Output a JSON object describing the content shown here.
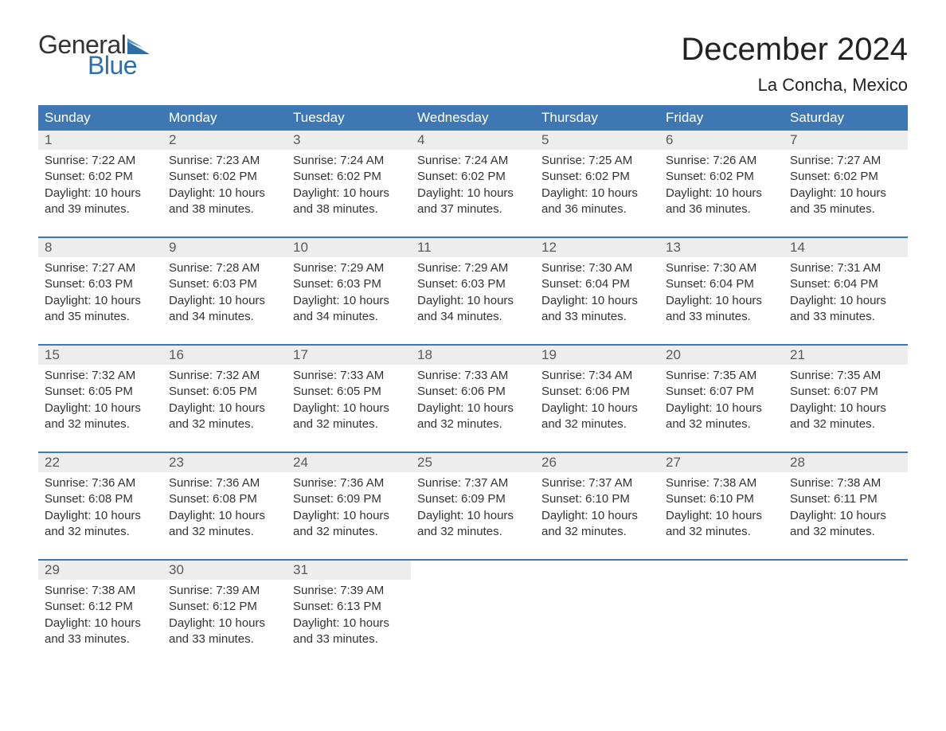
{
  "brand": {
    "line1": "General",
    "line2": "Blue",
    "flag_color": "#2f6fa8",
    "text_dark": "#333333",
    "text_blue": "#2f6fa8"
  },
  "title": "December 2024",
  "location": "La Concha, Mexico",
  "colors": {
    "header_bg": "#3d78b4",
    "header_fg": "#ffffff",
    "daynum_bg": "#ededed",
    "daynum_fg": "#5a5a5a",
    "border": "#3d78b4",
    "body_text": "#333333",
    "background": "#ffffff"
  },
  "fonts": {
    "title_size": 40,
    "location_size": 22,
    "dow_size": 17,
    "daynum_size": 17,
    "detail_size": 15
  },
  "days_of_week": [
    "Sunday",
    "Monday",
    "Tuesday",
    "Wednesday",
    "Thursday",
    "Friday",
    "Saturday"
  ],
  "weeks": [
    [
      {
        "n": "1",
        "sr": "Sunrise: 7:22 AM",
        "ss": "Sunset: 6:02 PM",
        "d1": "Daylight: 10 hours",
        "d2": "and 39 minutes."
      },
      {
        "n": "2",
        "sr": "Sunrise: 7:23 AM",
        "ss": "Sunset: 6:02 PM",
        "d1": "Daylight: 10 hours",
        "d2": "and 38 minutes."
      },
      {
        "n": "3",
        "sr": "Sunrise: 7:24 AM",
        "ss": "Sunset: 6:02 PM",
        "d1": "Daylight: 10 hours",
        "d2": "and 38 minutes."
      },
      {
        "n": "4",
        "sr": "Sunrise: 7:24 AM",
        "ss": "Sunset: 6:02 PM",
        "d1": "Daylight: 10 hours",
        "d2": "and 37 minutes."
      },
      {
        "n": "5",
        "sr": "Sunrise: 7:25 AM",
        "ss": "Sunset: 6:02 PM",
        "d1": "Daylight: 10 hours",
        "d2": "and 36 minutes."
      },
      {
        "n": "6",
        "sr": "Sunrise: 7:26 AM",
        "ss": "Sunset: 6:02 PM",
        "d1": "Daylight: 10 hours",
        "d2": "and 36 minutes."
      },
      {
        "n": "7",
        "sr": "Sunrise: 7:27 AM",
        "ss": "Sunset: 6:02 PM",
        "d1": "Daylight: 10 hours",
        "d2": "and 35 minutes."
      }
    ],
    [
      {
        "n": "8",
        "sr": "Sunrise: 7:27 AM",
        "ss": "Sunset: 6:03 PM",
        "d1": "Daylight: 10 hours",
        "d2": "and 35 minutes."
      },
      {
        "n": "9",
        "sr": "Sunrise: 7:28 AM",
        "ss": "Sunset: 6:03 PM",
        "d1": "Daylight: 10 hours",
        "d2": "and 34 minutes."
      },
      {
        "n": "10",
        "sr": "Sunrise: 7:29 AM",
        "ss": "Sunset: 6:03 PM",
        "d1": "Daylight: 10 hours",
        "d2": "and 34 minutes."
      },
      {
        "n": "11",
        "sr": "Sunrise: 7:29 AM",
        "ss": "Sunset: 6:03 PM",
        "d1": "Daylight: 10 hours",
        "d2": "and 34 minutes."
      },
      {
        "n": "12",
        "sr": "Sunrise: 7:30 AM",
        "ss": "Sunset: 6:04 PM",
        "d1": "Daylight: 10 hours",
        "d2": "and 33 minutes."
      },
      {
        "n": "13",
        "sr": "Sunrise: 7:30 AM",
        "ss": "Sunset: 6:04 PM",
        "d1": "Daylight: 10 hours",
        "d2": "and 33 minutes."
      },
      {
        "n": "14",
        "sr": "Sunrise: 7:31 AM",
        "ss": "Sunset: 6:04 PM",
        "d1": "Daylight: 10 hours",
        "d2": "and 33 minutes."
      }
    ],
    [
      {
        "n": "15",
        "sr": "Sunrise: 7:32 AM",
        "ss": "Sunset: 6:05 PM",
        "d1": "Daylight: 10 hours",
        "d2": "and 32 minutes."
      },
      {
        "n": "16",
        "sr": "Sunrise: 7:32 AM",
        "ss": "Sunset: 6:05 PM",
        "d1": "Daylight: 10 hours",
        "d2": "and 32 minutes."
      },
      {
        "n": "17",
        "sr": "Sunrise: 7:33 AM",
        "ss": "Sunset: 6:05 PM",
        "d1": "Daylight: 10 hours",
        "d2": "and 32 minutes."
      },
      {
        "n": "18",
        "sr": "Sunrise: 7:33 AM",
        "ss": "Sunset: 6:06 PM",
        "d1": "Daylight: 10 hours",
        "d2": "and 32 minutes."
      },
      {
        "n": "19",
        "sr": "Sunrise: 7:34 AM",
        "ss": "Sunset: 6:06 PM",
        "d1": "Daylight: 10 hours",
        "d2": "and 32 minutes."
      },
      {
        "n": "20",
        "sr": "Sunrise: 7:35 AM",
        "ss": "Sunset: 6:07 PM",
        "d1": "Daylight: 10 hours",
        "d2": "and 32 minutes."
      },
      {
        "n": "21",
        "sr": "Sunrise: 7:35 AM",
        "ss": "Sunset: 6:07 PM",
        "d1": "Daylight: 10 hours",
        "d2": "and 32 minutes."
      }
    ],
    [
      {
        "n": "22",
        "sr": "Sunrise: 7:36 AM",
        "ss": "Sunset: 6:08 PM",
        "d1": "Daylight: 10 hours",
        "d2": "and 32 minutes."
      },
      {
        "n": "23",
        "sr": "Sunrise: 7:36 AM",
        "ss": "Sunset: 6:08 PM",
        "d1": "Daylight: 10 hours",
        "d2": "and 32 minutes."
      },
      {
        "n": "24",
        "sr": "Sunrise: 7:36 AM",
        "ss": "Sunset: 6:09 PM",
        "d1": "Daylight: 10 hours",
        "d2": "and 32 minutes."
      },
      {
        "n": "25",
        "sr": "Sunrise: 7:37 AM",
        "ss": "Sunset: 6:09 PM",
        "d1": "Daylight: 10 hours",
        "d2": "and 32 minutes."
      },
      {
        "n": "26",
        "sr": "Sunrise: 7:37 AM",
        "ss": "Sunset: 6:10 PM",
        "d1": "Daylight: 10 hours",
        "d2": "and 32 minutes."
      },
      {
        "n": "27",
        "sr": "Sunrise: 7:38 AM",
        "ss": "Sunset: 6:10 PM",
        "d1": "Daylight: 10 hours",
        "d2": "and 32 minutes."
      },
      {
        "n": "28",
        "sr": "Sunrise: 7:38 AM",
        "ss": "Sunset: 6:11 PM",
        "d1": "Daylight: 10 hours",
        "d2": "and 32 minutes."
      }
    ],
    [
      {
        "n": "29",
        "sr": "Sunrise: 7:38 AM",
        "ss": "Sunset: 6:12 PM",
        "d1": "Daylight: 10 hours",
        "d2": "and 33 minutes."
      },
      {
        "n": "30",
        "sr": "Sunrise: 7:39 AM",
        "ss": "Sunset: 6:12 PM",
        "d1": "Daylight: 10 hours",
        "d2": "and 33 minutes."
      },
      {
        "n": "31",
        "sr": "Sunrise: 7:39 AM",
        "ss": "Sunset: 6:13 PM",
        "d1": "Daylight: 10 hours",
        "d2": "and 33 minutes."
      },
      null,
      null,
      null,
      null
    ]
  ]
}
